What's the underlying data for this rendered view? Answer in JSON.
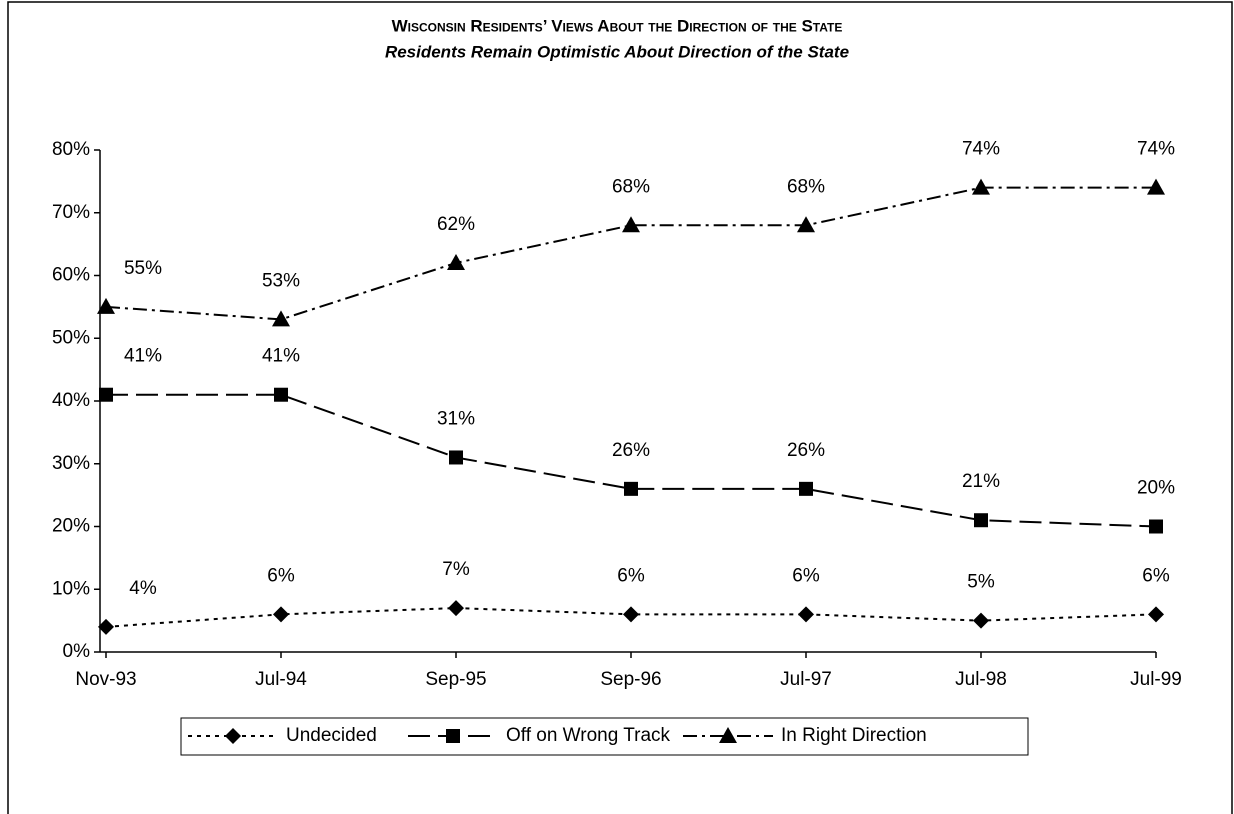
{
  "chart_data": {
    "type": "line",
    "title": "Wisconsin Residents’ Views About the Direction of the State",
    "subtitle": "Residents Remain Optimistic About Direction of the State",
    "categories": [
      "Nov-93",
      "Jul-94",
      "Sep-95",
      "Sep-96",
      "Jul-97",
      "Jul-98",
      "Jul-99"
    ],
    "series": [
      {
        "name": "Undecided",
        "color": "#000000",
        "values": [
          4,
          6,
          7,
          6,
          6,
          5,
          6
        ],
        "value_labels": [
          "4%",
          "6%",
          "7%",
          "6%",
          "6%",
          "5%",
          "6%"
        ]
      },
      {
        "name": "Off on Wrong Track",
        "color": "#000000",
        "values": [
          41,
          41,
          31,
          26,
          26,
          21,
          20
        ],
        "value_labels": [
          "41%",
          "41%",
          "31%",
          "26%",
          "26%",
          "21%",
          "20%"
        ]
      },
      {
        "name": "In Right Direction",
        "color": "#000000",
        "values": [
          55,
          53,
          62,
          68,
          68,
          74,
          74
        ],
        "value_labels": [
          "55%",
          "53%",
          "62%",
          "68%",
          "68%",
          "74%",
          "74%"
        ]
      }
    ],
    "ylim": [
      0,
      80
    ],
    "yticks": [
      {
        "value": 0,
        "label": "0%"
      },
      {
        "value": 10,
        "label": "10%"
      },
      {
        "value": 20,
        "label": "20%"
      },
      {
        "value": 30,
        "label": "30%"
      },
      {
        "value": 40,
        "label": "40%"
      },
      {
        "value": 50,
        "label": "50%"
      },
      {
        "value": 60,
        "label": "60%"
      },
      {
        "value": 70,
        "label": "70%"
      },
      {
        "value": 80,
        "label": "80%"
      }
    ],
    "legend": "bottom"
  }
}
